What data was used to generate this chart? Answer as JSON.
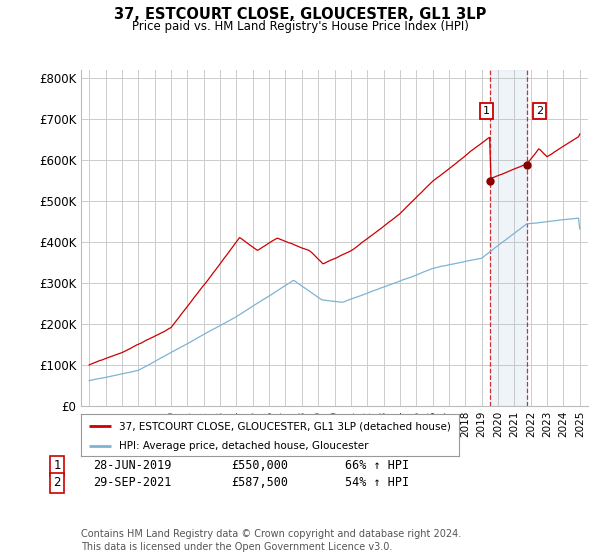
{
  "title": "37, ESTCOURT CLOSE, GLOUCESTER, GL1 3LP",
  "subtitle": "Price paid vs. HM Land Registry's House Price Index (HPI)",
  "ylabel_ticks": [
    "£0",
    "£100K",
    "£200K",
    "£300K",
    "£400K",
    "£500K",
    "£600K",
    "£700K",
    "£800K"
  ],
  "ytick_values": [
    0,
    100000,
    200000,
    300000,
    400000,
    500000,
    600000,
    700000,
    800000
  ],
  "ylim": [
    0,
    820000
  ],
  "xlim_start": 1994.5,
  "xlim_end": 2025.5,
  "red_line_color": "#cc0000",
  "blue_line_color": "#7fb3d3",
  "vline_color": "#cc0000",
  "shade_color": "#ddeeff",
  "marker1_date": 2019.49,
  "marker1_value": 550000,
  "marker2_date": 2021.75,
  "marker2_value": 587500,
  "legend_label_red": "37, ESTCOURT CLOSE, GLOUCESTER, GL1 3LP (detached house)",
  "legend_label_blue": "HPI: Average price, detached house, Gloucester",
  "table_row1": [
    "1",
    "28-JUN-2019",
    "£550,000",
    "66% ↑ HPI"
  ],
  "table_row2": [
    "2",
    "29-SEP-2021",
    "£587,500",
    "54% ↑ HPI"
  ],
  "footer": "Contains HM Land Registry data © Crown copyright and database right 2024.\nThis data is licensed under the Open Government Licence v3.0.",
  "background_color": "#ffffff",
  "grid_color": "#cccccc"
}
